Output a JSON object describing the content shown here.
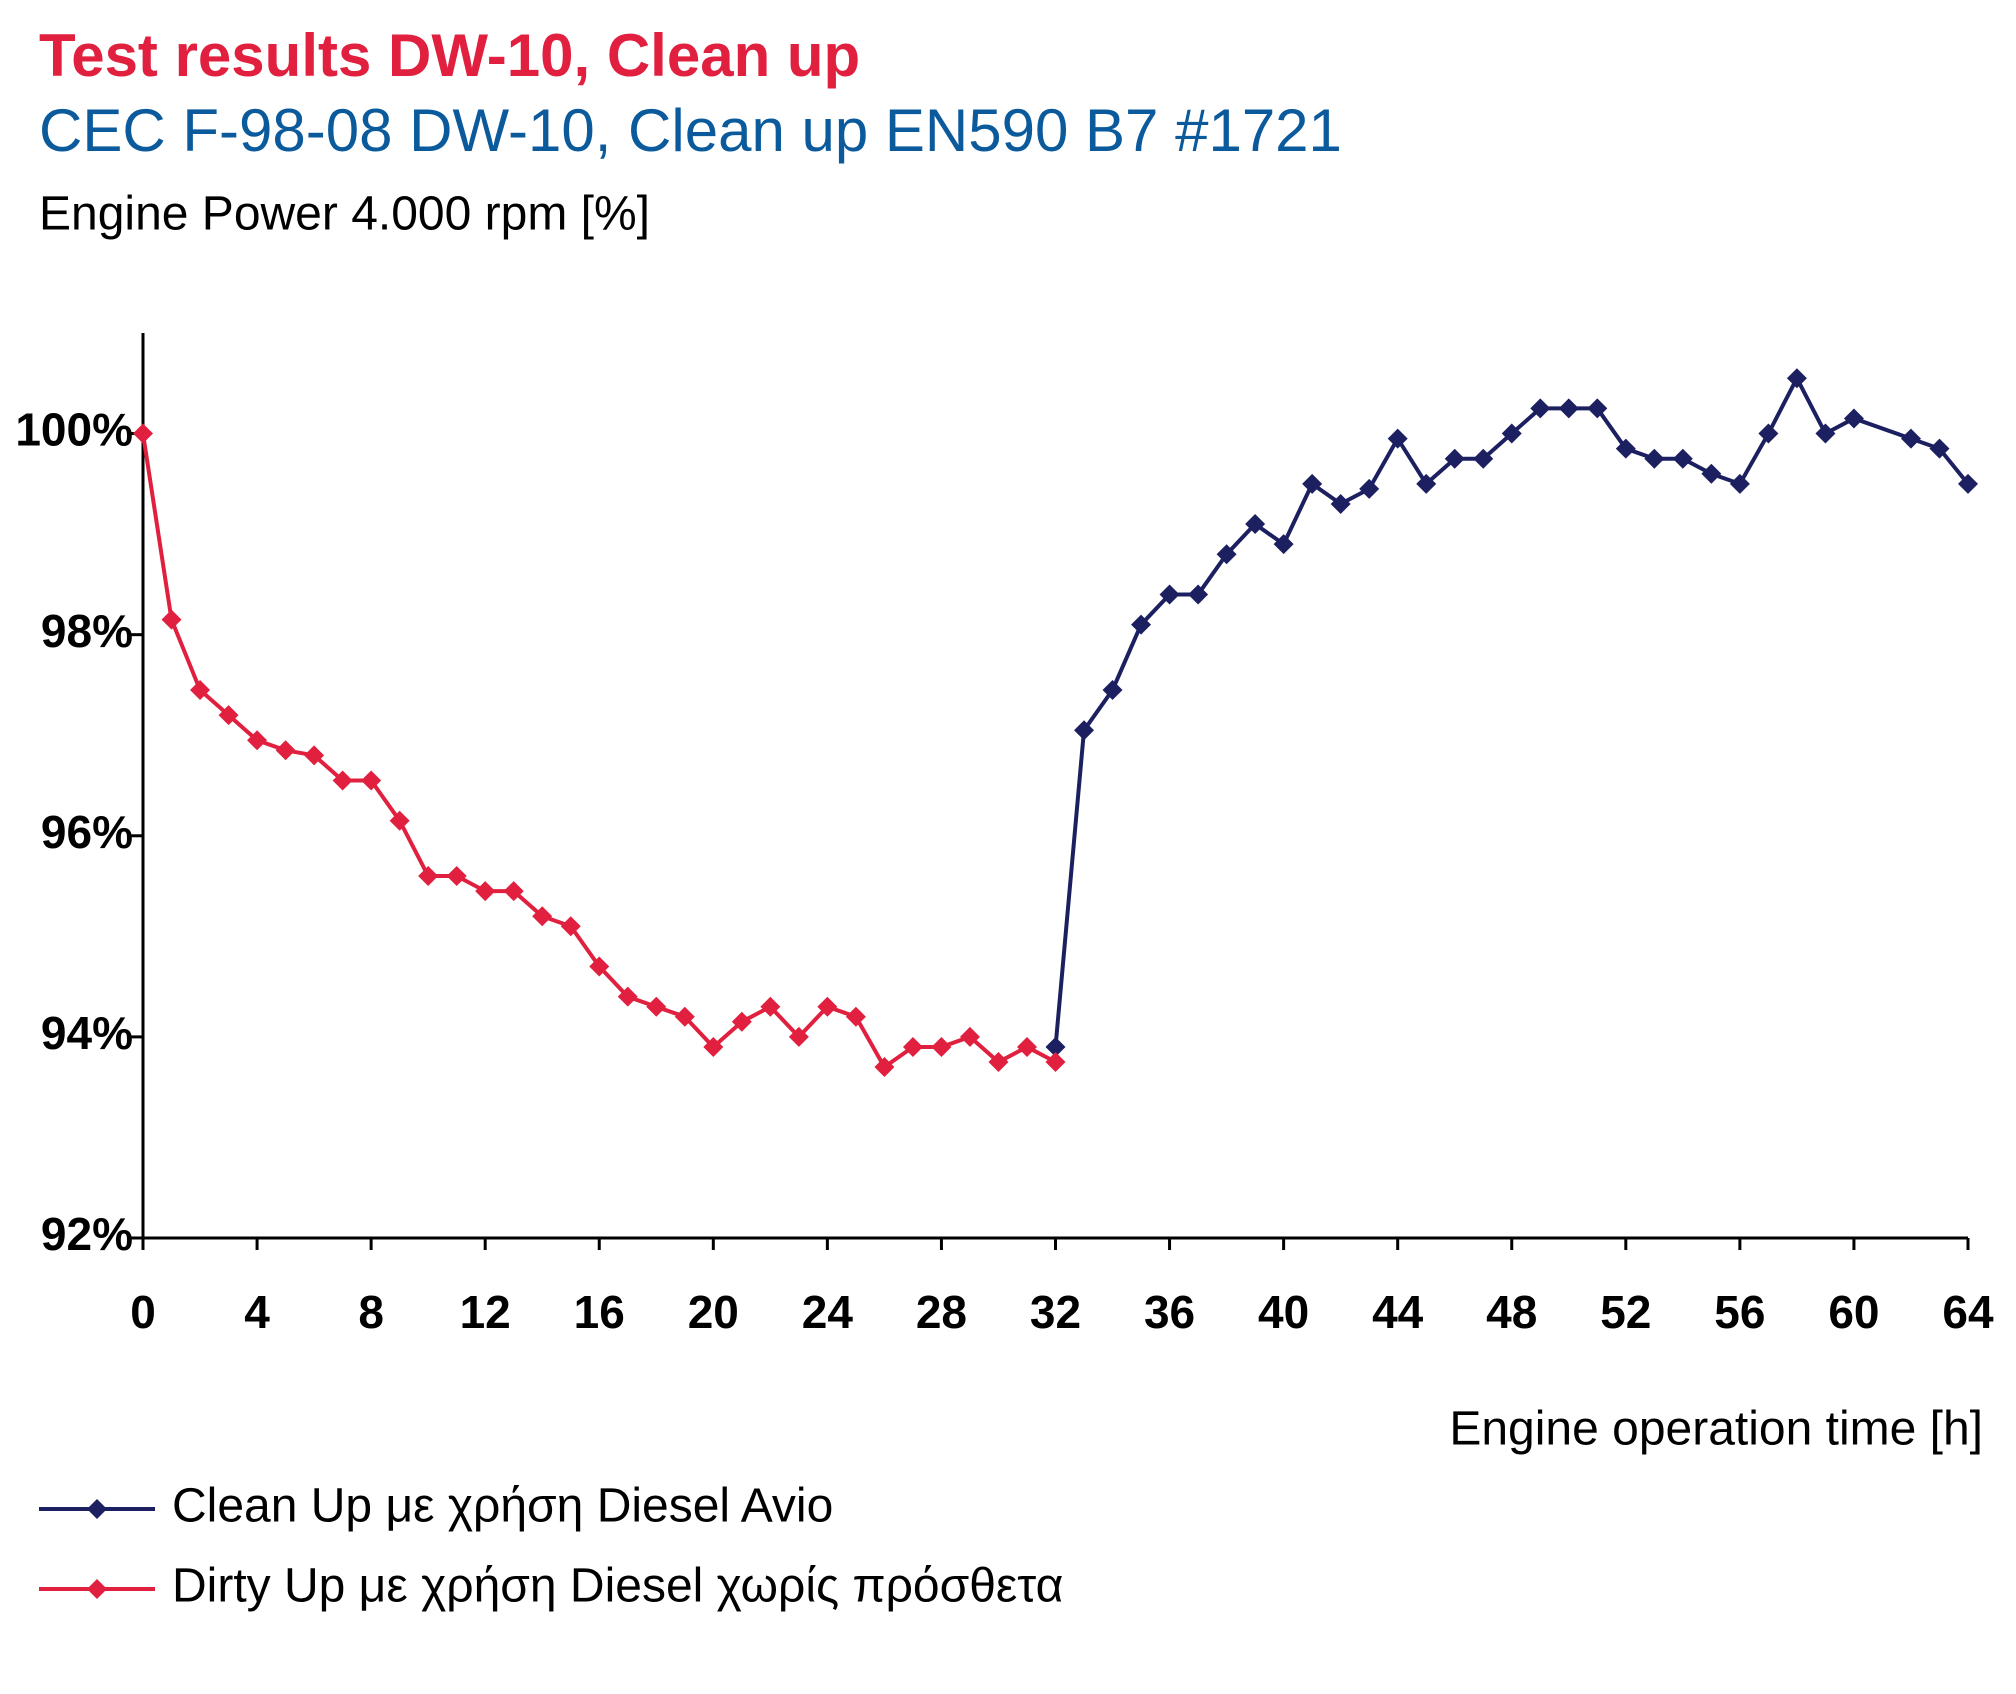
{
  "chart_data": {
    "type": "line",
    "title": "Test results DW-10, Clean up",
    "subtitle": "CEC F-98-08 DW-10, Clean up EN590 B7 #1721",
    "y_label": "Engine Power 4.000 rpm [%]",
    "x_label": "Engine operation time [h]",
    "xlim": [
      0,
      64
    ],
    "xticks": [
      0,
      4,
      8,
      12,
      16,
      20,
      24,
      28,
      32,
      36,
      40,
      44,
      48,
      52,
      56,
      60,
      64
    ],
    "ylim": [
      92,
      101
    ],
    "yticks": [
      {
        "value": 92,
        "label": "92%"
      },
      {
        "value": 94,
        "label": "94%"
      },
      {
        "value": 96,
        "label": "96%"
      },
      {
        "value": 98,
        "label": "98%"
      },
      {
        "value": 100,
        "label": "100%"
      }
    ],
    "series": [
      {
        "name": "Clean Up με χρήση Diesel Avio",
        "color": "#1d2060",
        "x": [
          32,
          33,
          34,
          35,
          36,
          37,
          38,
          39,
          40,
          41,
          42,
          43,
          44,
          45,
          46,
          47,
          48,
          49,
          50,
          51,
          52,
          53,
          54,
          55,
          56,
          57,
          58,
          59,
          60,
          62,
          63,
          64
        ],
        "values": [
          93.9,
          97.05,
          97.45,
          98.1,
          98.4,
          98.4,
          98.8,
          99.1,
          98.9,
          99.5,
          99.3,
          99.45,
          99.95,
          99.5,
          99.75,
          99.75,
          100.0,
          100.25,
          100.25,
          100.25,
          99.85,
          99.75,
          99.75,
          99.6,
          99.5,
          100.0,
          100.55,
          100.0,
          100.15,
          99.95,
          99.85,
          99.5
        ]
      },
      {
        "name": "Dirty Up με χρήση Diesel χωρίς πρόσθετα",
        "color": "#e0203e",
        "x": [
          0,
          1,
          2,
          3,
          4,
          5,
          6,
          7,
          8,
          9,
          10,
          11,
          12,
          13,
          14,
          15,
          16,
          17,
          18,
          19,
          20,
          21,
          22,
          23,
          24,
          25,
          26,
          27,
          28,
          29,
          30,
          31,
          32
        ],
        "values": [
          100.0,
          98.15,
          97.45,
          97.2,
          96.95,
          96.85,
          96.8,
          96.55,
          96.55,
          96.15,
          95.6,
          95.6,
          95.45,
          95.45,
          95.2,
          95.1,
          94.7,
          94.4,
          94.3,
          94.2,
          93.9,
          94.15,
          94.3,
          94.0,
          94.3,
          94.2,
          93.7,
          93.9,
          93.9,
          94.0,
          93.75,
          93.9,
          93.75
        ]
      }
    ]
  }
}
